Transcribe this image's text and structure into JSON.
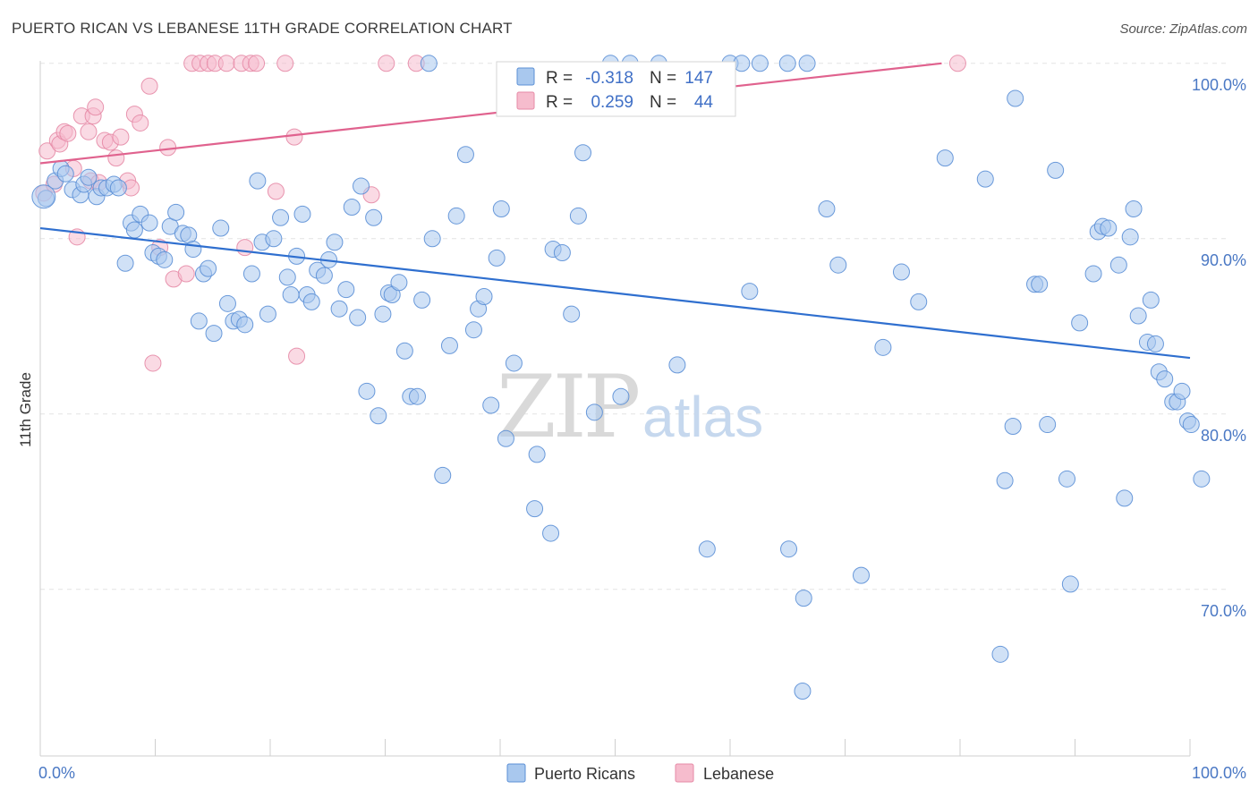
{
  "title": "PUERTO RICAN VS LEBANESE 11TH GRADE CORRELATION CHART",
  "source": "Source: ZipAtlas.com",
  "watermark": {
    "zip": "ZIP",
    "atlas": "atlas"
  },
  "colors": {
    "blue_fill": "#a9c8ee",
    "blue_stroke": "#5b8fd6",
    "blue_line": "#2f6fcf",
    "pink_fill": "#f6bccd",
    "pink_stroke": "#e68aa6",
    "pink_line": "#e0628e",
    "grid": "#e3e3e3",
    "axis_text": "#4a78c4"
  },
  "stats": {
    "r_label": "R =",
    "n_label": "N =",
    "rows": [
      {
        "series": "Puerto Ricans",
        "r": "-0.318",
        "n": "147"
      },
      {
        "series": "Lebanese",
        "r": "0.259",
        "n": "44"
      }
    ]
  },
  "chart_data": {
    "type": "scatter",
    "title": "PUERTO RICAN VS LEBANESE 11TH GRADE CORRELATION CHART",
    "xlabel": "",
    "ylabel": "11th Grade",
    "xlim": [
      0,
      100
    ],
    "ylim": [
      60.5,
      100.5
    ],
    "x_tick_labels": [
      {
        "value": 0,
        "label": "0.0%"
      },
      {
        "value": 100,
        "label": "100.0%"
      }
    ],
    "x_minor_ticks": [
      0,
      10,
      20,
      30,
      40,
      50,
      60,
      70,
      80,
      90,
      100
    ],
    "y_ticks": [
      {
        "value": 70,
        "label": "70.0%"
      },
      {
        "value": 80,
        "label": "80.0%"
      },
      {
        "value": 90,
        "label": "90.0%"
      },
      {
        "value": 100,
        "label": "100.0%"
      }
    ],
    "legend": [
      "Puerto Ricans",
      "Lebanese"
    ],
    "series": [
      {
        "name": "Puerto Ricans",
        "color": "blue",
        "trend": {
          "x": [
            0,
            100
          ],
          "y": [
            90.6,
            83.2
          ]
        },
        "points": [
          [
            0.5,
            92.3
          ],
          [
            1.3,
            93.3
          ],
          [
            1.8,
            94.0
          ],
          [
            2.2,
            93.7
          ],
          [
            2.8,
            92.8
          ],
          [
            3.5,
            92.5
          ],
          [
            3.8,
            93.1
          ],
          [
            4.2,
            93.5
          ],
          [
            4.9,
            92.4
          ],
          [
            5.3,
            92.9
          ],
          [
            5.8,
            92.9
          ],
          [
            6.4,
            93.1
          ],
          [
            6.8,
            92.9
          ],
          [
            7.4,
            88.6
          ],
          [
            7.9,
            90.9
          ],
          [
            8.2,
            90.5
          ],
          [
            8.7,
            91.4
          ],
          [
            9.5,
            90.9
          ],
          [
            9.8,
            89.2
          ],
          [
            10.3,
            89.0
          ],
          [
            10.8,
            88.8
          ],
          [
            11.3,
            90.7
          ],
          [
            11.8,
            91.5
          ],
          [
            12.4,
            90.3
          ],
          [
            12.9,
            90.2
          ],
          [
            13.3,
            89.4
          ],
          [
            13.8,
            85.3
          ],
          [
            14.2,
            88.0
          ],
          [
            14.6,
            88.3
          ],
          [
            15.1,
            84.6
          ],
          [
            15.7,
            90.6
          ],
          [
            16.3,
            86.3
          ],
          [
            16.8,
            85.3
          ],
          [
            17.3,
            85.4
          ],
          [
            17.8,
            85.1
          ],
          [
            18.4,
            88.0
          ],
          [
            18.9,
            93.3
          ],
          [
            19.3,
            89.8
          ],
          [
            19.8,
            85.7
          ],
          [
            20.3,
            90.0
          ],
          [
            20.9,
            91.2
          ],
          [
            21.5,
            87.8
          ],
          [
            21.8,
            86.8
          ],
          [
            22.3,
            89.0
          ],
          [
            22.8,
            91.4
          ],
          [
            23.2,
            86.8
          ],
          [
            23.6,
            86.4
          ],
          [
            24.1,
            88.2
          ],
          [
            24.7,
            87.9
          ],
          [
            25.1,
            88.8
          ],
          [
            25.6,
            89.8
          ],
          [
            26.0,
            86.0
          ],
          [
            26.6,
            87.1
          ],
          [
            27.1,
            91.8
          ],
          [
            27.6,
            85.5
          ],
          [
            27.9,
            93.0
          ],
          [
            28.4,
            81.3
          ],
          [
            29.0,
            91.2
          ],
          [
            29.4,
            79.9
          ],
          [
            29.8,
            85.7
          ],
          [
            30.3,
            86.9
          ],
          [
            30.6,
            86.8
          ],
          [
            31.2,
            87.5
          ],
          [
            31.7,
            83.6
          ],
          [
            32.2,
            81.0
          ],
          [
            32.8,
            81.0
          ],
          [
            33.2,
            86.5
          ],
          [
            33.8,
            100.0
          ],
          [
            34.1,
            90.0
          ],
          [
            35.0,
            76.5
          ],
          [
            35.6,
            83.9
          ],
          [
            36.2,
            91.3
          ],
          [
            37.0,
            94.8
          ],
          [
            37.7,
            84.8
          ],
          [
            38.1,
            86.0
          ],
          [
            38.6,
            86.7
          ],
          [
            39.2,
            80.5
          ],
          [
            39.7,
            88.9
          ],
          [
            40.1,
            91.7
          ],
          [
            40.5,
            78.6
          ],
          [
            41.2,
            82.9
          ],
          [
            43.0,
            74.6
          ],
          [
            43.2,
            77.7
          ],
          [
            44.4,
            73.2
          ],
          [
            44.6,
            89.4
          ],
          [
            45.4,
            89.2
          ],
          [
            46.2,
            85.7
          ],
          [
            46.8,
            91.3
          ],
          [
            47.2,
            94.9
          ],
          [
            48.2,
            80.1
          ],
          [
            49.6,
            100.0
          ],
          [
            50.5,
            81.0
          ],
          [
            51.3,
            100.0
          ],
          [
            53.8,
            100.0
          ],
          [
            55.4,
            82.8
          ],
          [
            58.0,
            72.3
          ],
          [
            60.0,
            100.0
          ],
          [
            61.0,
            100.0
          ],
          [
            61.7,
            87.0
          ],
          [
            62.6,
            100.0
          ],
          [
            65.0,
            100.0
          ],
          [
            65.1,
            72.3
          ],
          [
            66.3,
            64.2
          ],
          [
            66.4,
            69.5
          ],
          [
            66.7,
            100.0
          ],
          [
            68.4,
            91.7
          ],
          [
            69.4,
            88.5
          ],
          [
            71.4,
            70.8
          ],
          [
            73.3,
            83.8
          ],
          [
            74.9,
            88.1
          ],
          [
            76.4,
            86.4
          ],
          [
            78.7,
            94.6
          ],
          [
            82.2,
            93.4
          ],
          [
            83.5,
            66.3
          ],
          [
            83.9,
            76.2
          ],
          [
            84.6,
            79.3
          ],
          [
            84.8,
            98.0
          ],
          [
            86.5,
            87.4
          ],
          [
            86.9,
            87.4
          ],
          [
            87.6,
            79.4
          ],
          [
            88.3,
            93.9
          ],
          [
            89.3,
            76.3
          ],
          [
            89.6,
            70.3
          ],
          [
            90.4,
            85.2
          ],
          [
            91.6,
            88.0
          ],
          [
            92.0,
            90.4
          ],
          [
            92.4,
            90.7
          ],
          [
            92.9,
            90.6
          ],
          [
            93.8,
            88.5
          ],
          [
            94.3,
            75.2
          ],
          [
            94.8,
            90.1
          ],
          [
            95.1,
            91.7
          ],
          [
            95.5,
            85.6
          ],
          [
            96.3,
            84.1
          ],
          [
            96.6,
            86.5
          ],
          [
            97.0,
            84.0
          ],
          [
            97.3,
            82.4
          ],
          [
            97.8,
            82.0
          ],
          [
            98.5,
            80.7
          ],
          [
            98.9,
            80.7
          ],
          [
            99.3,
            81.3
          ],
          [
            99.8,
            79.6
          ],
          [
            100.1,
            79.4
          ],
          [
            101.0,
            76.3
          ],
          [
            0.3,
            92.4
          ]
        ]
      },
      {
        "name": "Lebanese",
        "color": "pink",
        "trend": {
          "x": [
            0,
            78.4
          ],
          "y": [
            94.3,
            100.0
          ]
        },
        "points": [
          [
            0.3,
            92.6
          ],
          [
            0.6,
            95.0
          ],
          [
            1.2,
            93.1
          ],
          [
            1.5,
            95.6
          ],
          [
            1.7,
            95.4
          ],
          [
            2.1,
            96.1
          ],
          [
            2.4,
            96.0
          ],
          [
            2.9,
            94.0
          ],
          [
            3.2,
            90.1
          ],
          [
            3.6,
            97.0
          ],
          [
            4.2,
            96.1
          ],
          [
            4.4,
            93.3
          ],
          [
            4.6,
            97.0
          ],
          [
            4.8,
            97.5
          ],
          [
            5.1,
            93.2
          ],
          [
            5.6,
            95.6
          ],
          [
            6.1,
            95.5
          ],
          [
            6.6,
            94.6
          ],
          [
            7.0,
            95.8
          ],
          [
            7.6,
            93.3
          ],
          [
            7.9,
            92.9
          ],
          [
            8.2,
            97.1
          ],
          [
            8.7,
            96.6
          ],
          [
            9.5,
            98.7
          ],
          [
            9.8,
            82.9
          ],
          [
            10.4,
            89.5
          ],
          [
            11.1,
            95.2
          ],
          [
            11.6,
            87.7
          ],
          [
            12.7,
            88.0
          ],
          [
            13.2,
            100.0
          ],
          [
            13.9,
            100.0
          ],
          [
            14.6,
            100.0
          ],
          [
            15.2,
            100.0
          ],
          [
            16.2,
            100.0
          ],
          [
            17.5,
            100.0
          ],
          [
            17.8,
            89.5
          ],
          [
            18.3,
            100.0
          ],
          [
            18.8,
            100.0
          ],
          [
            20.5,
            92.7
          ],
          [
            21.3,
            100.0
          ],
          [
            22.1,
            95.8
          ],
          [
            22.3,
            83.3
          ],
          [
            28.8,
            92.5
          ],
          [
            30.1,
            100.0
          ],
          [
            32.7,
            100.0
          ],
          [
            79.8,
            100.0
          ]
        ]
      }
    ]
  }
}
